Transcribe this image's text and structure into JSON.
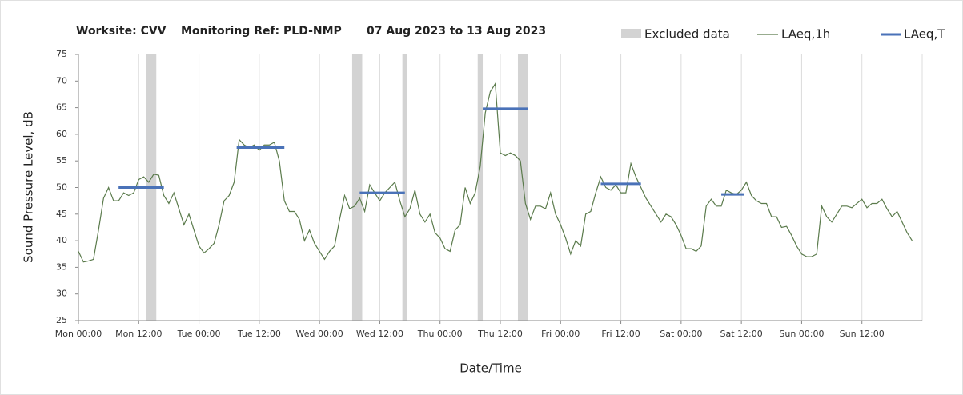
{
  "chart_data": {
    "type": "line",
    "title": {
      "site": "Worksite: CVV",
      "ref": "Monitoring Ref: PLD-NMP",
      "dates": "07 Aug 2023 to 13 Aug 2023"
    },
    "xlabel": "Date/Time",
    "ylabel": "Sound Pressure Level, dB",
    "xlim": [
      0,
      168
    ],
    "ylim": [
      25,
      75
    ],
    "yticks": [
      25,
      30,
      35,
      40,
      45,
      50,
      55,
      60,
      65,
      70,
      75
    ],
    "xticks": [
      {
        "value": 0,
        "label": "Mon 00:00"
      },
      {
        "value": 12,
        "label": "Mon 12:00"
      },
      {
        "value": 24,
        "label": "Tue 00:00"
      },
      {
        "value": 36,
        "label": "Tue 12:00"
      },
      {
        "value": 48,
        "label": "Wed 00:00"
      },
      {
        "value": 60,
        "label": "Wed 12:00"
      },
      {
        "value": 72,
        "label": "Thu 00:00"
      },
      {
        "value": 84,
        "label": "Thu 12:00"
      },
      {
        "value": 96,
        "label": "Fri 00:00"
      },
      {
        "value": 108,
        "label": "Fri 12:00"
      },
      {
        "value": 120,
        "label": "Sat 00:00"
      },
      {
        "value": 132,
        "label": "Sat 12:00"
      },
      {
        "value": 144,
        "label": "Sun 00:00"
      },
      {
        "value": 156,
        "label": "Sun 12:00"
      }
    ],
    "grid": true,
    "legend": "top-right",
    "excluded": {
      "name": "Excluded data",
      "color": "#d3d3d3",
      "ranges": [
        [
          13.5,
          15.5
        ],
        [
          54.5,
          56.5
        ],
        [
          64.5,
          65.5
        ],
        [
          79.5,
          80.5
        ],
        [
          87.5,
          89.5
        ]
      ]
    },
    "series": [
      {
        "name": "LAeq,1h",
        "color": "#5b7b4c",
        "x": [
          0,
          1,
          2,
          3,
          4,
          5,
          6,
          7,
          8,
          9,
          10,
          11,
          12,
          13,
          14,
          15,
          16,
          17,
          18,
          19,
          20,
          21,
          22,
          23,
          24,
          25,
          26,
          27,
          28,
          29,
          30,
          31,
          32,
          33,
          34,
          35,
          36,
          37,
          38,
          39,
          40,
          41,
          42,
          43,
          44,
          45,
          46,
          47,
          48,
          49,
          50,
          51,
          52,
          53,
          54,
          55,
          56,
          57,
          58,
          59,
          60,
          61,
          62,
          63,
          64,
          65,
          66,
          67,
          68,
          69,
          70,
          71,
          72,
          73,
          74,
          75,
          76,
          77,
          78,
          79,
          80,
          81,
          82,
          83,
          84,
          85,
          86,
          87,
          88,
          89,
          90,
          91,
          92,
          93,
          94,
          95,
          96,
          97,
          98,
          99,
          100,
          101,
          102,
          103,
          104,
          105,
          106,
          107,
          108,
          109,
          110,
          111,
          112,
          113,
          114,
          115,
          116,
          117,
          118,
          119,
          120,
          121,
          122,
          123,
          124,
          125,
          126,
          127,
          128,
          129,
          130,
          131,
          132,
          133,
          134,
          135,
          136,
          137,
          138,
          139,
          140,
          141,
          142,
          143,
          144,
          145,
          146,
          147,
          148,
          149,
          150,
          151,
          152,
          153,
          154,
          155,
          156,
          157,
          158,
          159,
          160,
          161,
          162,
          163,
          164,
          165,
          166
        ],
        "values": [
          38,
          36,
          36.2,
          36.5,
          42,
          48,
          50,
          47.5,
          47.5,
          49,
          48.5,
          49,
          51.5,
          52,
          51,
          52.5,
          52.3,
          48.5,
          47,
          49,
          46,
          43,
          45,
          42,
          39,
          37.7,
          38.5,
          39.5,
          43,
          47.5,
          48.5,
          51,
          59,
          58,
          57.5,
          58,
          57,
          58,
          58,
          58.5,
          55,
          47.5,
          45.5,
          45.5,
          44,
          40,
          42,
          39.5,
          38,
          36.5,
          38,
          39,
          44,
          48.5,
          46,
          46.5,
          48,
          45.5,
          50.5,
          49,
          47.5,
          49,
          50,
          51,
          47.5,
          44.5,
          46,
          49.5,
          45,
          43.5,
          45,
          41.5,
          40.5,
          38.5,
          38,
          42,
          43,
          50,
          47,
          49,
          54,
          64,
          68,
          69.5,
          56.5,
          56,
          56.5,
          56,
          55,
          47,
          44,
          46.5,
          46.5,
          46,
          49,
          45,
          43,
          40.5,
          37.5,
          40,
          39,
          45,
          45.5,
          49,
          52,
          50,
          49.5,
          50.5,
          49,
          49,
          54.5,
          52,
          50,
          48,
          46.5,
          45,
          43.5,
          45,
          44.5,
          43,
          41,
          38.5,
          38.5,
          38,
          39,
          46.5,
          47.8,
          46.5,
          46.5,
          49.5,
          49,
          48.7,
          49.5,
          51,
          48.5,
          47.5,
          47,
          47,
          44.5,
          44.5,
          42.5,
          42.7,
          41,
          39,
          37.5,
          37,
          37,
          37.5,
          46.5,
          44.5,
          43.5,
          45,
          46.5,
          46.5,
          46.2,
          47,
          47.8,
          46.2,
          47,
          47,
          47.8,
          46,
          44.5,
          45.5,
          43.5,
          41.5,
          40
        ]
      }
    ],
    "laeq_t": {
      "name": "LAeq,T",
      "color": "#4a72b8",
      "segments": [
        {
          "start": 8,
          "end": 17,
          "value": 50
        },
        {
          "start": 31.5,
          "end": 41,
          "value": 57.5
        },
        {
          "start": 56,
          "end": 65,
          "value": 49
        },
        {
          "start": 80.5,
          "end": 89.5,
          "value": 64.8
        },
        {
          "start": 104,
          "end": 112,
          "value": 50.7
        },
        {
          "start": 128,
          "end": 132.5,
          "value": 48.7
        }
      ]
    }
  }
}
